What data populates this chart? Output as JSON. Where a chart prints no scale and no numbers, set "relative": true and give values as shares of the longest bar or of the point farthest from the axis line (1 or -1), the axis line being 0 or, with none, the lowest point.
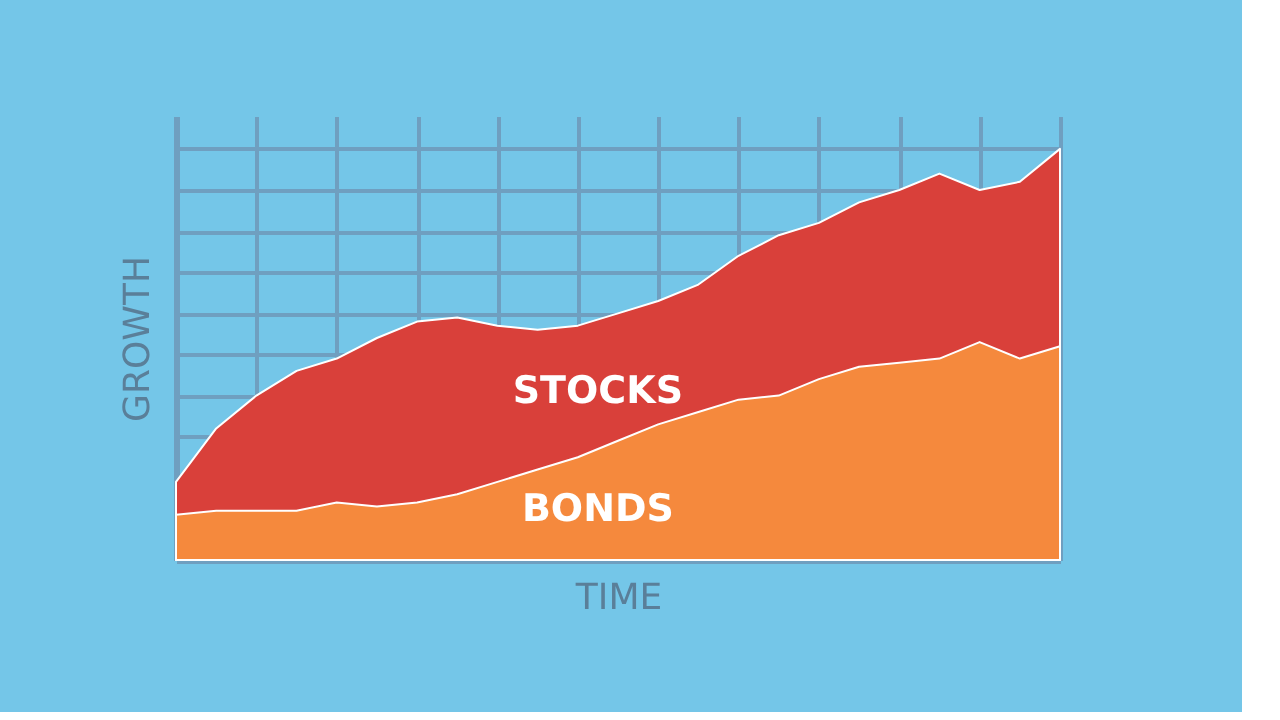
{
  "chart_data": {
    "type": "area",
    "relative": true,
    "xlabel": "TIME",
    "ylabel": "GROWTH",
    "grid": true,
    "categories": [
      null,
      null,
      null,
      null,
      null,
      null,
      null,
      null,
      null,
      null,
      null,
      null,
      null,
      null,
      null,
      null,
      null,
      null,
      null,
      null,
      null,
      null,
      null
    ],
    "series": [
      {
        "name": "STOCKS",
        "color": "#d9403a",
        "values": [
          0.19,
          0.32,
          0.4,
          0.46,
          0.49,
          0.54,
          0.58,
          0.59,
          0.57,
          0.56,
          0.57,
          0.6,
          0.63,
          0.67,
          0.74,
          0.79,
          0.82,
          0.87,
          0.9,
          0.94,
          0.9,
          0.92,
          1.0
        ]
      },
      {
        "name": "BONDS",
        "color": "#f5893d",
        "values": [
          0.11,
          0.12,
          0.12,
          0.12,
          0.14,
          0.13,
          0.14,
          0.16,
          0.19,
          0.22,
          0.25,
          0.29,
          0.33,
          0.36,
          0.39,
          0.4,
          0.44,
          0.47,
          0.48,
          0.49,
          0.53,
          0.49,
          0.52
        ]
      }
    ]
  }
}
